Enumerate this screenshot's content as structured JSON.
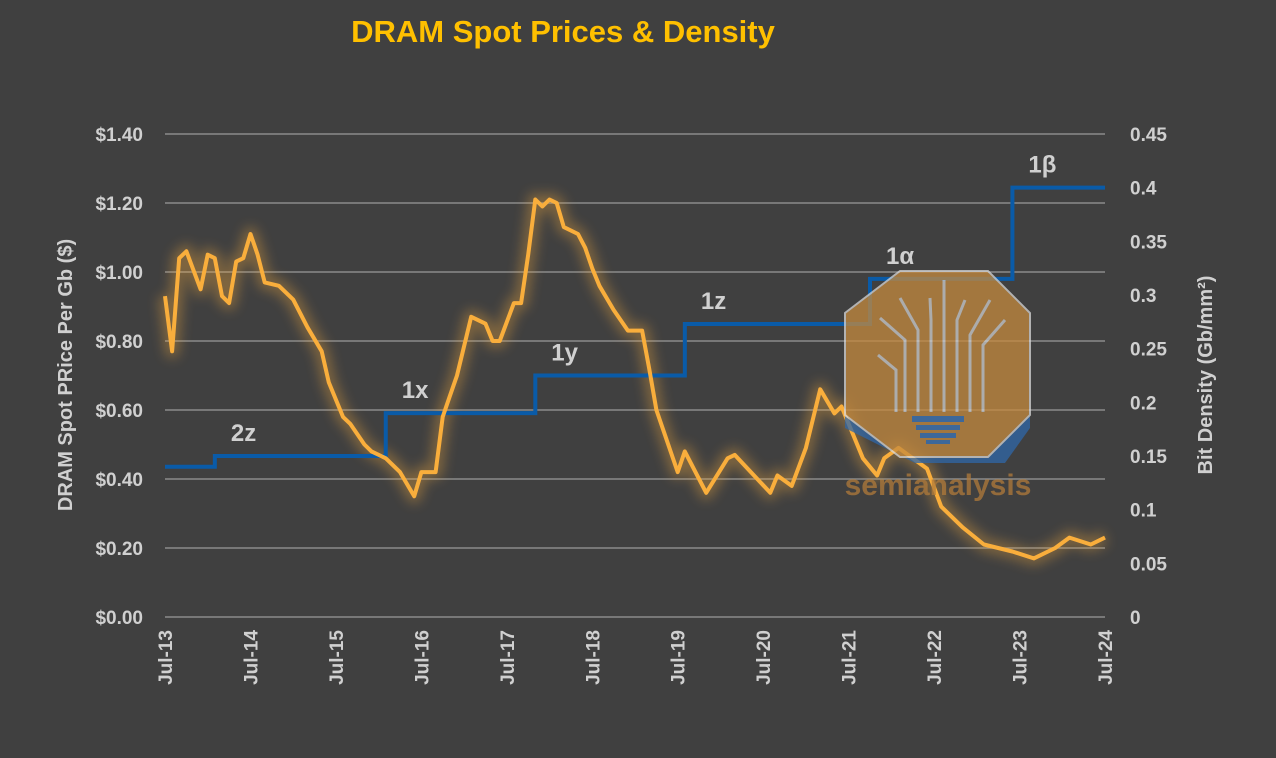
{
  "chart_data": {
    "type": "line",
    "title": "DRAM Spot Prices & Density",
    "ylabel": "DRAM Spot PRice Per Gb ($)",
    "y2label": "Bit Density (Gb/mm²)",
    "xlabel": "",
    "grid": true,
    "ylim": [
      0,
      1.4
    ],
    "y2lim": [
      0,
      0.45
    ],
    "y_ticks": [
      "$0.00",
      "$0.20",
      "$0.40",
      "$0.60",
      "$0.80",
      "$1.00",
      "$1.20",
      "$1.40"
    ],
    "y2_ticks": [
      "0",
      "0.05",
      "0.1",
      "0.15",
      "0.2",
      "0.25",
      "0.3",
      "0.35",
      "0.4",
      "0.45"
    ],
    "x_ticks": [
      "Jul-13",
      "Jul-14",
      "Jul-15",
      "Jul-16",
      "Jul-17",
      "Jul-18",
      "Jul-19",
      "Jul-20",
      "Jul-21",
      "Jul-22",
      "Jul-23",
      "Jul-24"
    ],
    "colors": {
      "price": "#F9AE3C",
      "density": "#0A5BA8",
      "background": "#404040",
      "title": "#FFC000"
    },
    "series": [
      {
        "axis": "left",
        "points": [
          [
            "2013-07",
            0.93
          ],
          [
            "2013-08",
            0.77
          ],
          [
            "2013-09",
            1.04
          ],
          [
            "2013-10",
            1.06
          ],
          [
            "2013-12",
            0.95
          ],
          [
            "2014-01",
            1.05
          ],
          [
            "2014-02",
            1.04
          ],
          [
            "2014-03",
            0.93
          ],
          [
            "2014-04",
            0.91
          ],
          [
            "2014-05",
            1.03
          ],
          [
            "2014-06",
            1.04
          ],
          [
            "2014-07",
            1.11
          ],
          [
            "2014-08",
            1.05
          ],
          [
            "2014-09",
            0.97
          ],
          [
            "2014-11",
            0.96
          ],
          [
            "2015-01",
            0.92
          ],
          [
            "2015-03",
            0.84
          ],
          [
            "2015-05",
            0.77
          ],
          [
            "2015-06",
            0.68
          ],
          [
            "2015-08",
            0.58
          ],
          [
            "2015-09",
            0.56
          ],
          [
            "2015-11",
            0.5
          ],
          [
            "2015-12",
            0.48
          ],
          [
            "2016-02",
            0.46
          ],
          [
            "2016-04",
            0.42
          ],
          [
            "2016-06",
            0.35
          ],
          [
            "2016-07",
            0.42
          ],
          [
            "2016-09",
            0.42
          ],
          [
            "2016-10",
            0.58
          ],
          [
            "2016-11",
            0.64
          ],
          [
            "2016-12",
            0.7
          ],
          [
            "2017-02",
            0.87
          ],
          [
            "2017-04",
            0.85
          ],
          [
            "2017-05",
            0.8
          ],
          [
            "2017-06",
            0.8
          ],
          [
            "2017-08",
            0.91
          ],
          [
            "2017-09",
            0.91
          ],
          [
            "2017-10",
            1.05
          ],
          [
            "2017-11",
            1.21
          ],
          [
            "2017-12",
            1.19
          ],
          [
            "2018-01",
            1.21
          ],
          [
            "2018-02",
            1.2
          ],
          [
            "2018-03",
            1.13
          ],
          [
            "2018-05",
            1.11
          ],
          [
            "2018-06",
            1.07
          ],
          [
            "2018-07",
            1.01
          ],
          [
            "2018-08",
            0.96
          ],
          [
            "2018-10",
            0.89
          ],
          [
            "2018-12",
            0.83
          ],
          [
            "2019-02",
            0.83
          ],
          [
            "2019-03",
            0.72
          ],
          [
            "2019-04",
            0.6
          ],
          [
            "2019-07",
            0.42
          ],
          [
            "2019-08",
            0.48
          ],
          [
            "2019-11",
            0.36
          ],
          [
            "2020-02",
            0.46
          ],
          [
            "2020-03",
            0.47
          ],
          [
            "2020-08",
            0.36
          ],
          [
            "2020-09",
            0.41
          ],
          [
            "2020-11",
            0.38
          ],
          [
            "2021-01",
            0.49
          ],
          [
            "2021-03",
            0.66
          ],
          [
            "2021-05",
            0.59
          ],
          [
            "2021-06",
            0.61
          ],
          [
            "2021-09",
            0.46
          ],
          [
            "2021-11",
            0.41
          ],
          [
            "2021-12",
            0.46
          ],
          [
            "2022-02",
            0.49
          ],
          [
            "2022-06",
            0.43
          ],
          [
            "2022-08",
            0.32
          ],
          [
            "2022-11",
            0.26
          ],
          [
            "2023-02",
            0.21
          ],
          [
            "2023-06",
            0.19
          ],
          [
            "2023-09",
            0.17
          ],
          [
            "2023-12",
            0.2
          ],
          [
            "2024-02",
            0.23
          ],
          [
            "2024-05",
            0.21
          ],
          [
            "2024-07",
            0.23
          ]
        ]
      },
      {
        "axis": "right",
        "step": true,
        "steps": [
          {
            "label": "",
            "start": "2013-07",
            "value": 0.14
          },
          {
            "label": "2z",
            "start": "2014-02",
            "value": 0.15
          },
          {
            "label": "1x",
            "start": "2016-02",
            "value": 0.19
          },
          {
            "label": "1y",
            "start": "2017-11",
            "value": 0.225
          },
          {
            "label": "1z",
            "start": "2019-08",
            "value": 0.273
          },
          {
            "label": "1α",
            "start": "2021-10",
            "value": 0.315
          },
          {
            "label": "1β",
            "start": "2023-06",
            "value": 0.4
          }
        ],
        "end": "2024-07"
      }
    ]
  },
  "watermark": {
    "text": "semianalysis"
  }
}
